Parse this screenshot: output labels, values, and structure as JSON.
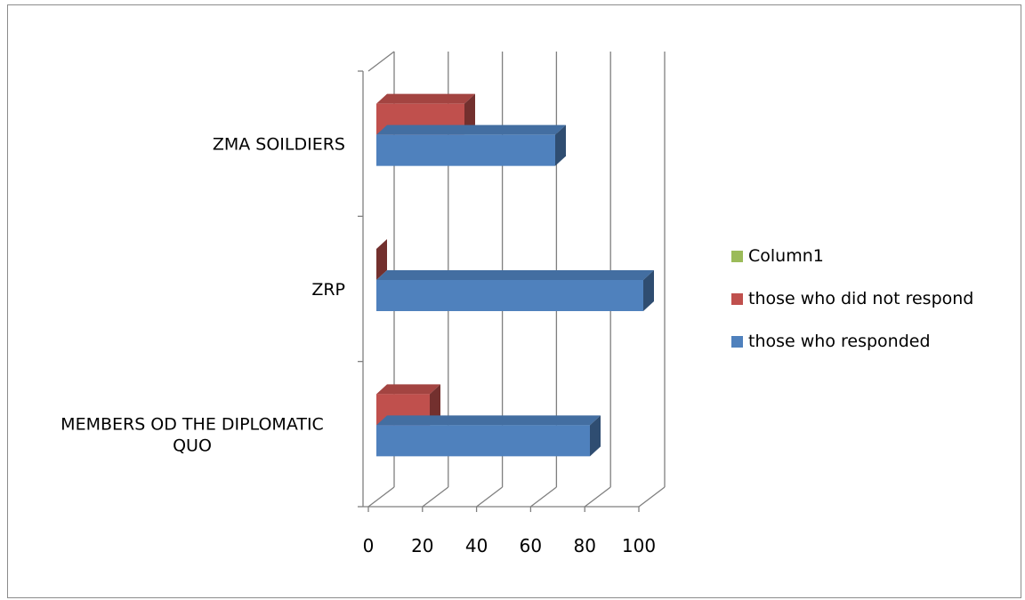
{
  "chart_data": {
    "type": "bar",
    "orientation": "horizontal",
    "style": "3d",
    "categories": [
      "MEMBERS OD THE DIPLOMATIC QUO",
      "ZRP",
      "ZMA SOILDIERS"
    ],
    "category_lines": [
      [
        "MEMBERS OD THE DIPLOMATIC",
        "QUO"
      ],
      [
        "ZRP"
      ],
      [
        "ZMA SOILDIERS"
      ]
    ],
    "series": [
      {
        "name": "Column1",
        "values": [
          0,
          0,
          0
        ],
        "color": "#9BBB59"
      },
      {
        "name": "those who did not respond",
        "values": [
          20,
          0,
          33
        ],
        "color": "#C0504D"
      },
      {
        "name": "those who responded",
        "values": [
          80,
          100,
          67
        ],
        "color": "#4F81BD"
      }
    ],
    "xlim": [
      0,
      100
    ],
    "ticks": [
      "0",
      "20",
      "40",
      "60",
      "80",
      "100"
    ],
    "grid": true,
    "legend_position": "right"
  }
}
